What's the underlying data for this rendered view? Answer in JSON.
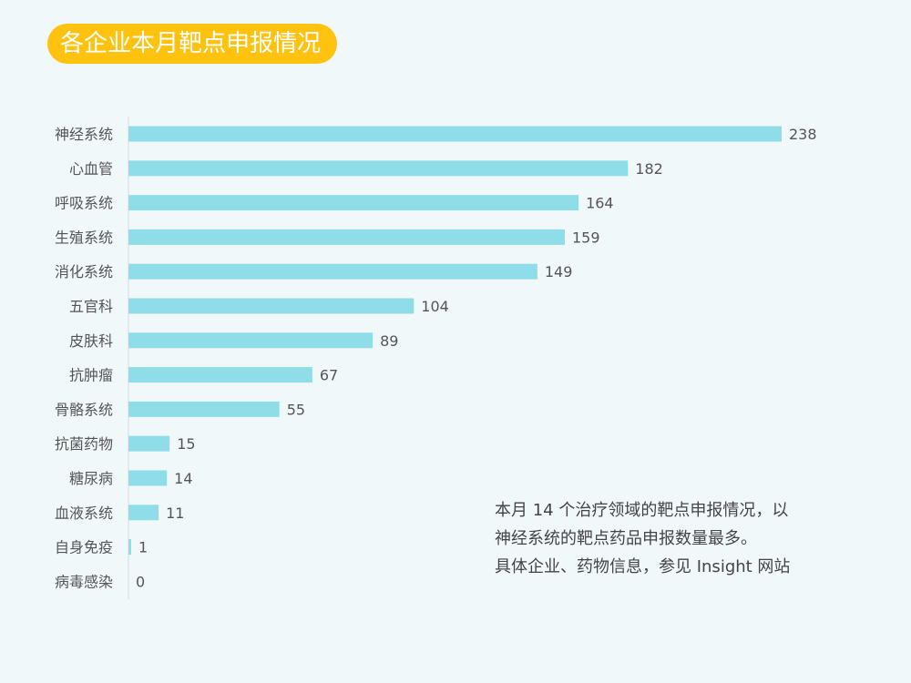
{
  "title": "各企业本月靶点申报情况",
  "note": {
    "lines": [
      "本月 14 个治疗领域的靶点申报情况，以",
      "神经系统的靶点药品申报数量最多。",
      "具体企业、药物信息，参见 Insight 网站"
    ]
  },
  "chart_data": {
    "type": "bar",
    "orientation": "horizontal",
    "categories": [
      "神经系统",
      "心血管",
      "呼吸系统",
      "生殖系统",
      "消化系统",
      "五官科",
      "皮肤科",
      "抗肿瘤",
      "骨骼系统",
      "抗菌药物",
      "糖尿病",
      "血液系统",
      "自身免疫",
      "病毒感染"
    ],
    "values": [
      238,
      182,
      164,
      159,
      149,
      104,
      89,
      67,
      55,
      15,
      14,
      11,
      1,
      0
    ],
    "bar_color": "#8fdde8",
    "xlim": [
      0,
      238
    ],
    "grid": false,
    "data_labels": true
  }
}
